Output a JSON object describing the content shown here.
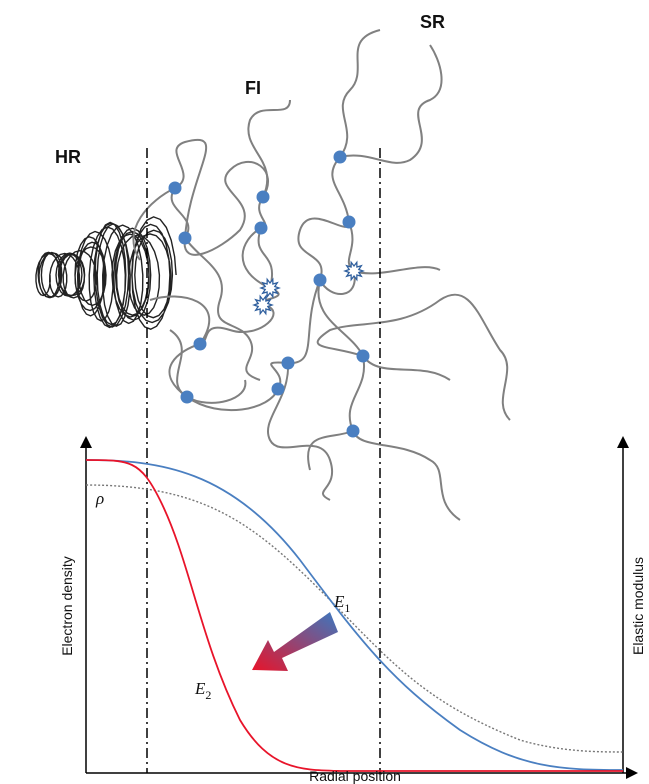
{
  "regions": {
    "hr": "HR",
    "fi": "FI",
    "sr": "SR"
  },
  "curve_labels": {
    "rho": "ρ",
    "e1": {
      "symbol": "E",
      "subscript": "1"
    },
    "e2": {
      "symbol": "E",
      "subscript": "2"
    }
  },
  "axes": {
    "left": "Electron density",
    "right": "Elastic modulus",
    "bottom": "Radial position"
  }
}
